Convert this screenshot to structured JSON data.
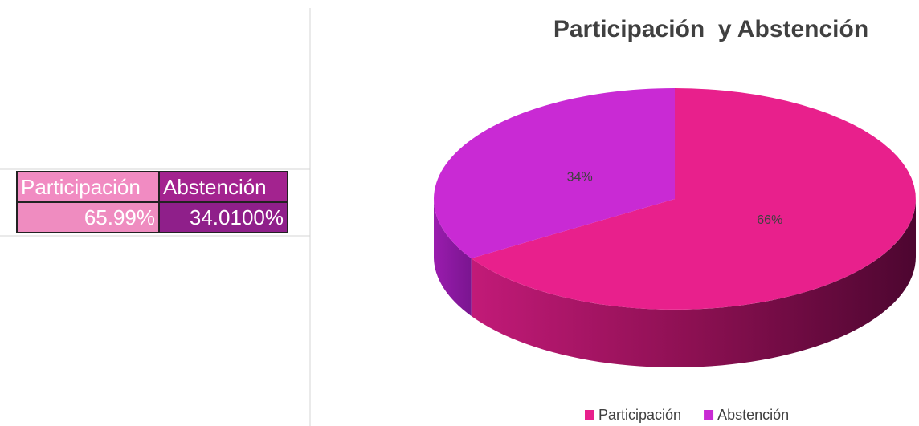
{
  "table": {
    "header": [
      "Participación",
      "Abstención"
    ],
    "rows": [
      [
        "65.99%",
        "34.0100%"
      ]
    ]
  },
  "chart_data": {
    "type": "pie",
    "title": "Participación  y Abstención",
    "categories": [
      "Participación",
      "Abstención"
    ],
    "values": [
      66,
      34
    ],
    "value_labels": [
      "66%",
      "34%"
    ],
    "colors": [
      "#e8208c",
      "#c92ad4"
    ],
    "legend": "bottom"
  }
}
